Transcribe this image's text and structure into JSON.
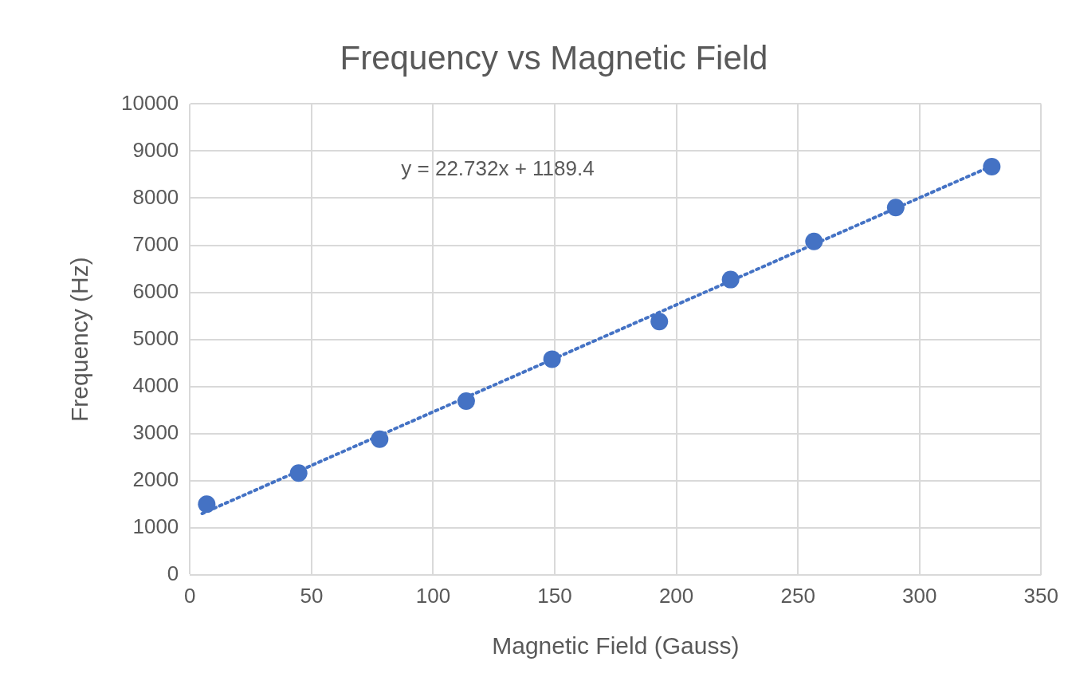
{
  "chart_data": {
    "type": "scatter",
    "title": "Frequency vs Magnetic Field",
    "xlabel": "Magnetic Field (Gauss)",
    "ylabel": "Frequency (Hz)",
    "series": [
      {
        "type": "scatter",
        "color": "#4472c4",
        "marker": "circle",
        "x": [
          6.9,
          44.7,
          78,
          113.6,
          148.9,
          193,
          222.3,
          256.6,
          290.2,
          329.7
        ],
        "values": [
          1500,
          2160,
          2880,
          3690,
          4580,
          5380,
          6270,
          7080,
          7800,
          8670
        ]
      },
      {
        "type": "line",
        "color": "#4472c4",
        "line_style": "dotted",
        "marker": "none",
        "x": [
          5,
          330
        ],
        "values": [
          1300,
          8690
        ]
      }
    ],
    "annotations": [
      "y = 22.732x + 1189.4"
    ],
    "xlim": [
      0,
      350
    ],
    "xticks": [
      0,
      50,
      100,
      150,
      200,
      250,
      300,
      350
    ],
    "ylim": [
      0,
      10000
    ],
    "yticks": [
      0,
      1000,
      2000,
      3000,
      4000,
      5000,
      6000,
      7000,
      8000,
      9000,
      10000
    ],
    "grid": true,
    "legend": false
  }
}
